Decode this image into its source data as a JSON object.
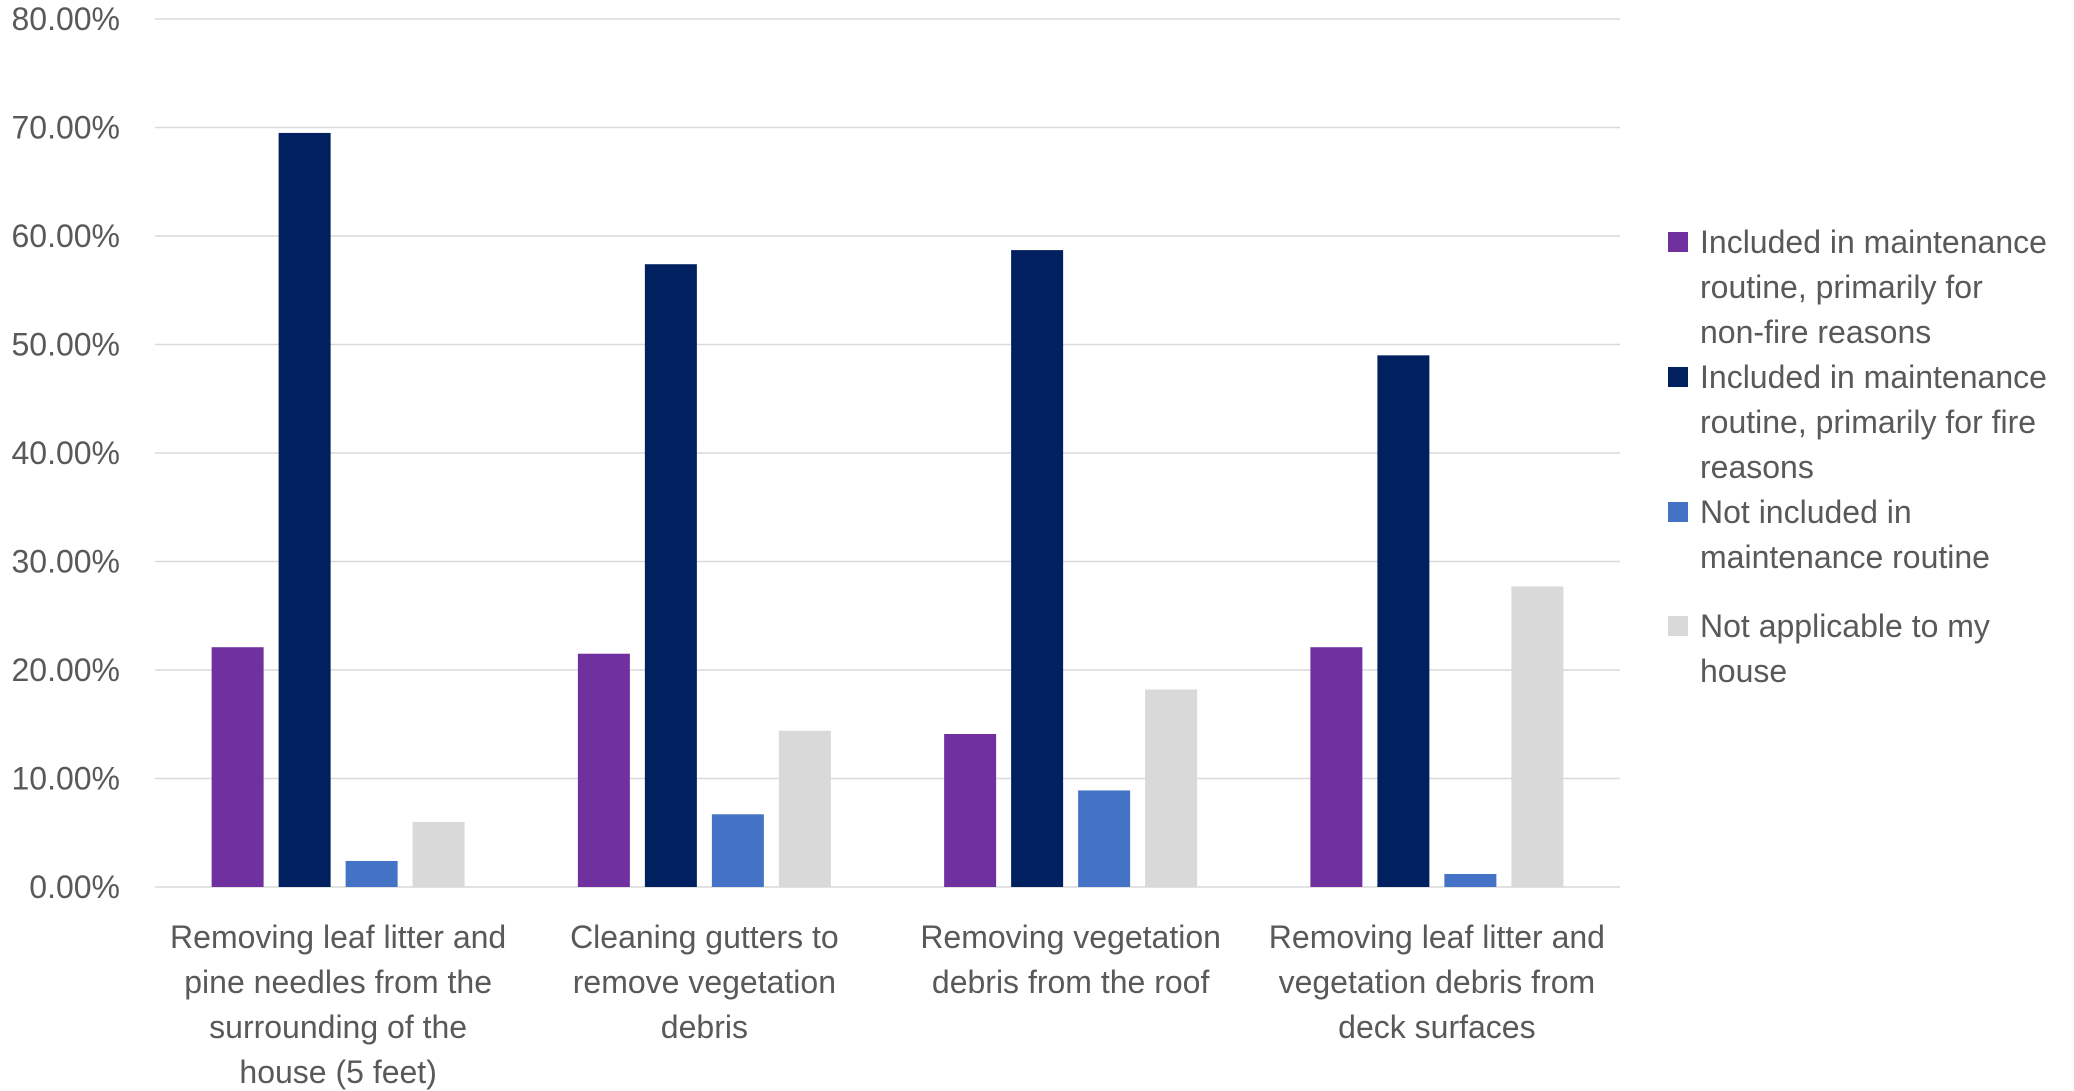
{
  "chart_data": {
    "type": "bar",
    "title": "",
    "xlabel": "",
    "ylabel": "",
    "ylim": [
      0,
      0.8
    ],
    "yticks": [
      {
        "value": 0.0,
        "label": "0.00%"
      },
      {
        "value": 0.1,
        "label": "10.00%"
      },
      {
        "value": 0.2,
        "label": "20.00%"
      },
      {
        "value": 0.3,
        "label": "30.00%"
      },
      {
        "value": 0.4,
        "label": "40.00%"
      },
      {
        "value": 0.5,
        "label": "50.00%"
      },
      {
        "value": 0.6,
        "label": "60.00%"
      },
      {
        "value": 0.7,
        "label": "70.00%"
      },
      {
        "value": 0.8,
        "label": "80.00%"
      }
    ],
    "grid": true,
    "legend_position": "right",
    "categories": [
      [
        "Removing leaf litter and",
        "pine needles from the",
        "surrounding of the",
        "house (5 feet)"
      ],
      [
        "Cleaning gutters to",
        "remove vegetation",
        "debris"
      ],
      [
        "Removing vegetation",
        "debris from the roof"
      ],
      [
        "Removing leaf litter and",
        "vegetation debris from",
        "deck surfaces"
      ]
    ],
    "series": [
      {
        "name": [
          "Included in maintenance",
          "routine, primarily for",
          "non-fire reasons"
        ],
        "color": "#7030A0",
        "values": [
          0.221,
          0.215,
          0.141,
          0.221
        ]
      },
      {
        "name": [
          "Included in maintenance",
          "routine, primarily for fire",
          "reasons"
        ],
        "color": "#002060",
        "values": [
          0.695,
          0.574,
          0.587,
          0.49
        ]
      },
      {
        "name": [
          "Not included in",
          "maintenance routine"
        ],
        "color": "#4472C4",
        "values": [
          0.024,
          0.067,
          0.089,
          0.012
        ]
      },
      {
        "name": [
          "Not applicable to my",
          "house"
        ],
        "color": "#D9D9D9",
        "values": [
          0.06,
          0.144,
          0.182,
          0.277
        ]
      }
    ]
  }
}
